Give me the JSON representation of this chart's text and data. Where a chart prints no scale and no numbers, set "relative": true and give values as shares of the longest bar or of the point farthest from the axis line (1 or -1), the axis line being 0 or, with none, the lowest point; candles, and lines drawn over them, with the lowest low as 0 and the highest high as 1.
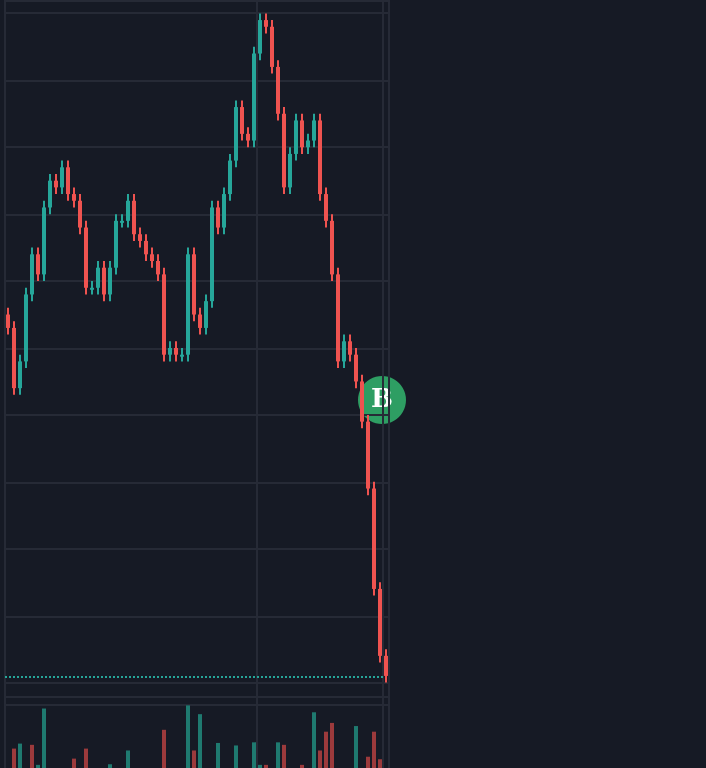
{
  "chart_data": [
    {
      "type": "candlestick",
      "relative": true,
      "categories": [
        null,
        null,
        null,
        null,
        null,
        null,
        null,
        null,
        null,
        null,
        null,
        null,
        null,
        null,
        null,
        null,
        null,
        null,
        null,
        null,
        null,
        null,
        null,
        null,
        null,
        null,
        null,
        null,
        null,
        null,
        null,
        null,
        null,
        null,
        null,
        null,
        null,
        null,
        null,
        null,
        null,
        null,
        null,
        null,
        null,
        null,
        null,
        null,
        null,
        null,
        null,
        null,
        null,
        null,
        null,
        null,
        null,
        null,
        null,
        null,
        null,
        null,
        null,
        null
      ],
      "ohlc": [
        [
          0.55,
          0.56,
          0.52,
          0.53
        ],
        [
          0.53,
          0.54,
          0.43,
          0.44
        ],
        [
          0.44,
          0.49,
          0.43,
          0.48
        ],
        [
          0.48,
          0.59,
          0.47,
          0.58
        ],
        [
          0.58,
          0.65,
          0.57,
          0.64
        ],
        [
          0.64,
          0.65,
          0.6,
          0.61
        ],
        [
          0.61,
          0.72,
          0.6,
          0.71
        ],
        [
          0.71,
          0.76,
          0.7,
          0.75
        ],
        [
          0.75,
          0.76,
          0.73,
          0.74
        ],
        [
          0.74,
          0.78,
          0.73,
          0.77
        ],
        [
          0.77,
          0.78,
          0.72,
          0.73
        ],
        [
          0.73,
          0.74,
          0.71,
          0.72
        ],
        [
          0.72,
          0.73,
          0.67,
          0.68
        ],
        [
          0.68,
          0.69,
          0.58,
          0.59
        ],
        [
          0.59,
          0.6,
          0.58,
          0.59
        ],
        [
          0.59,
          0.63,
          0.58,
          0.62
        ],
        [
          0.62,
          0.63,
          0.57,
          0.58
        ],
        [
          0.58,
          0.63,
          0.57,
          0.62
        ],
        [
          0.62,
          0.7,
          0.61,
          0.69
        ],
        [
          0.69,
          0.7,
          0.68,
          0.69
        ],
        [
          0.69,
          0.73,
          0.68,
          0.72
        ],
        [
          0.72,
          0.73,
          0.66,
          0.67
        ],
        [
          0.67,
          0.68,
          0.65,
          0.66
        ],
        [
          0.66,
          0.67,
          0.63,
          0.64
        ],
        [
          0.64,
          0.65,
          0.62,
          0.63
        ],
        [
          0.63,
          0.64,
          0.6,
          0.61
        ],
        [
          0.61,
          0.62,
          0.48,
          0.49
        ],
        [
          0.49,
          0.51,
          0.48,
          0.5
        ],
        [
          0.5,
          0.51,
          0.48,
          0.49
        ],
        [
          0.49,
          0.5,
          0.48,
          0.49
        ],
        [
          0.49,
          0.65,
          0.48,
          0.64
        ],
        [
          0.64,
          0.65,
          0.54,
          0.55
        ],
        [
          0.55,
          0.56,
          0.52,
          0.53
        ],
        [
          0.53,
          0.58,
          0.52,
          0.57
        ],
        [
          0.57,
          0.72,
          0.56,
          0.71
        ],
        [
          0.71,
          0.72,
          0.67,
          0.68
        ],
        [
          0.68,
          0.74,
          0.67,
          0.73
        ],
        [
          0.73,
          0.79,
          0.72,
          0.78
        ],
        [
          0.78,
          0.87,
          0.77,
          0.86
        ],
        [
          0.86,
          0.87,
          0.81,
          0.82
        ],
        [
          0.82,
          0.83,
          0.8,
          0.81
        ],
        [
          0.81,
          0.95,
          0.8,
          0.94
        ],
        [
          0.94,
          1.0,
          0.93,
          0.99
        ],
        [
          0.99,
          1.0,
          0.97,
          0.98
        ],
        [
          0.98,
          0.99,
          0.91,
          0.92
        ],
        [
          0.92,
          0.93,
          0.84,
          0.85
        ],
        [
          0.85,
          0.86,
          0.73,
          0.74
        ],
        [
          0.74,
          0.8,
          0.73,
          0.79
        ],
        [
          0.79,
          0.85,
          0.78,
          0.84
        ],
        [
          0.84,
          0.85,
          0.79,
          0.8
        ],
        [
          0.8,
          0.82,
          0.79,
          0.81
        ],
        [
          0.81,
          0.85,
          0.8,
          0.84
        ],
        [
          0.84,
          0.85,
          0.72,
          0.73
        ],
        [
          0.73,
          0.74,
          0.68,
          0.69
        ],
        [
          0.69,
          0.7,
          0.6,
          0.61
        ],
        [
          0.61,
          0.62,
          0.47,
          0.48
        ],
        [
          0.48,
          0.52,
          0.47,
          0.51
        ],
        [
          0.51,
          0.52,
          0.48,
          0.49
        ],
        [
          0.49,
          0.5,
          0.44,
          0.45
        ],
        [
          0.45,
          0.46,
          0.38,
          0.39
        ],
        [
          0.39,
          0.4,
          0.28,
          0.29
        ],
        [
          0.29,
          0.3,
          0.13,
          0.14
        ],
        [
          0.14,
          0.15,
          0.03,
          0.04
        ],
        [
          0.04,
          0.05,
          0.0,
          0.01
        ]
      ],
      "ref_lines": [
        {
          "axis": "y",
          "value": 0.01,
          "color": "#26a69a",
          "line_style": "dotted"
        }
      ],
      "annotations": [
        "B"
      ],
      "grid": true
    },
    {
      "type": "bar",
      "relative": true,
      "categories": [
        null,
        null,
        null,
        null,
        null,
        null,
        null,
        null,
        null,
        null,
        null,
        null,
        null,
        null,
        null,
        null,
        null,
        null,
        null,
        null,
        null,
        null,
        null,
        null,
        null,
        null,
        null,
        null,
        null,
        null,
        null,
        null,
        null,
        null,
        null,
        null,
        null,
        null,
        null,
        null,
        null,
        null,
        null,
        null,
        null,
        null,
        null,
        null,
        null,
        null,
        null,
        null,
        null,
        null,
        null,
        null,
        null,
        null,
        null,
        null,
        null,
        null,
        null,
        null
      ],
      "values": [
        0,
        0.31,
        0.39,
        0,
        0.37,
        0.05,
        0.95,
        0,
        0,
        0,
        0,
        0.15,
        0,
        0.31,
        0,
        0,
        0,
        0.06,
        0,
        0,
        0.28,
        0,
        0,
        0,
        0,
        0,
        0.61,
        0,
        0,
        0,
        1.0,
        0.28,
        0.86,
        0,
        0,
        0.4,
        0,
        0,
        0.36,
        0,
        0,
        0.41,
        0.05,
        0.05,
        0,
        0.41,
        0.37,
        0,
        0,
        0.05,
        0,
        0.89,
        0.28,
        0.58,
        0.72,
        0,
        0,
        0,
        0.67,
        0,
        0.18,
        0.58,
        0.14,
        0
      ],
      "colors": [
        null,
        "#9c3a3c",
        "#1f7a70",
        null,
        "#9c3a3c",
        "#1f7a70",
        "#1f7a70",
        null,
        null,
        null,
        null,
        "#9c3a3c",
        null,
        "#9c3a3c",
        null,
        null,
        null,
        "#1f7a70",
        null,
        null,
        "#1f7a70",
        null,
        null,
        null,
        null,
        null,
        "#9c3a3c",
        null,
        null,
        null,
        "#1f7a70",
        "#9c3a3c",
        "#1f7a70",
        null,
        null,
        "#1f7a70",
        null,
        null,
        "#1f7a70",
        null,
        null,
        "#1f7a70",
        "#1f7a70",
        "#9c3a3c",
        null,
        "#1f7a70",
        "#9c3a3c",
        null,
        null,
        "#9c3a3c",
        null,
        "#1f7a70",
        "#9c3a3c",
        "#9c3a3c",
        "#9c3a3c",
        null,
        null,
        null,
        "#1f7a70",
        null,
        "#9c3a3c",
        "#9c3a3c",
        "#9c3a3c",
        null
      ],
      "grid": true
    }
  ]
}
